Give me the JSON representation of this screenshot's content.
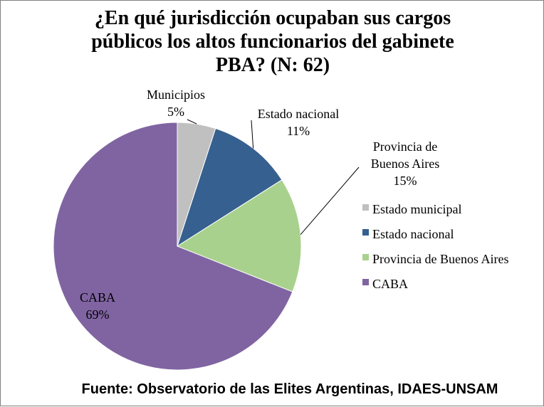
{
  "chart_data": {
    "type": "pie",
    "title_lines": [
      "¿En qué jurisdicción ocupaban sus cargos",
      "públicos los altos funcionarios del gabinete",
      "PBA? (N: 62)"
    ],
    "slices": [
      {
        "legend": "Estado municipal",
        "label_lines": [
          "Municipios",
          "5%"
        ],
        "value": 5,
        "color": "#c0c0c0"
      },
      {
        "legend": "Estado nacional",
        "label_lines": [
          "Estado nacional",
          "11%"
        ],
        "value": 11,
        "color": "#36608f"
      },
      {
        "legend": "Provincia de Buenos Aires",
        "label_lines": [
          "Provincia de",
          "Buenos Aires",
          "15%"
        ],
        "value": 15,
        "color": "#a9d18e"
      },
      {
        "legend": "CABA",
        "label_lines": [
          "CABA",
          "69%"
        ],
        "value": 69,
        "color": "#8064a2"
      }
    ],
    "legend_position": "right",
    "start_angle": "top",
    "direction": "clockwise"
  },
  "source_note": "Fuente: Observatorio de las Elites Argentinas, IDAES-UNSAM"
}
